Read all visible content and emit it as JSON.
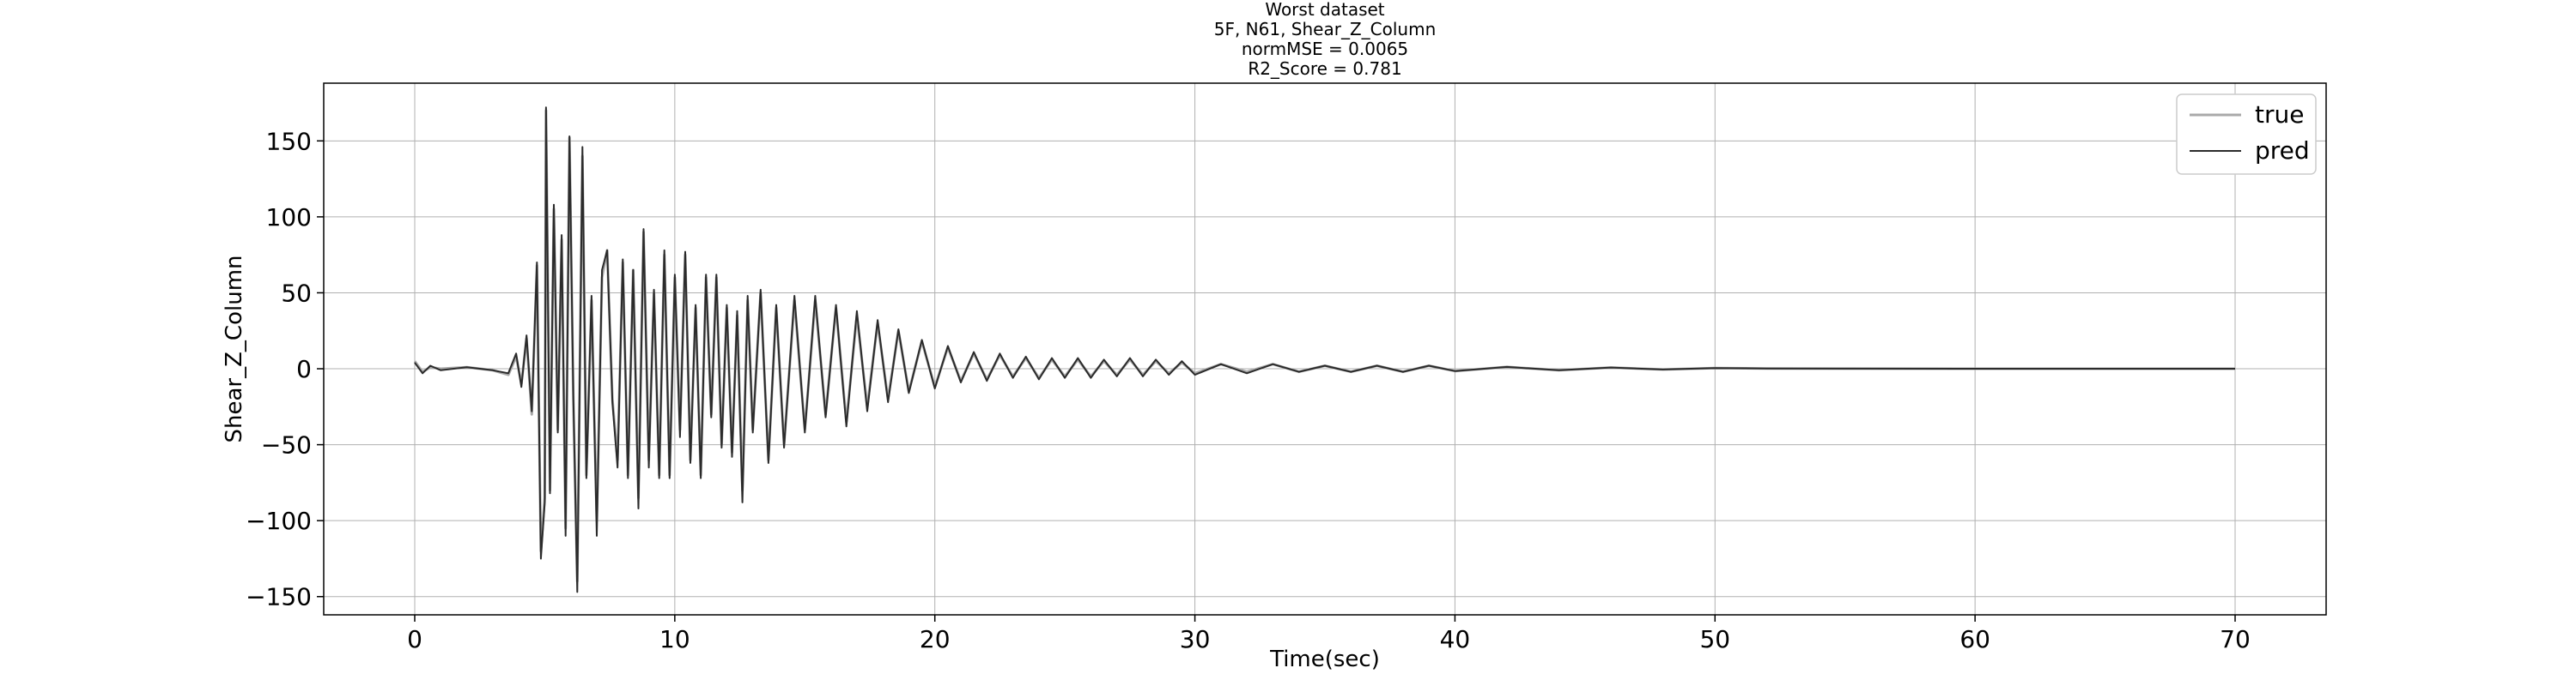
{
  "chart_data": {
    "type": "line",
    "title_lines": [
      "Worst dataset",
      "5F, N61, Shear_Z_Column",
      "normMSE = 0.0065",
      "R2_Score = 0.781"
    ],
    "xlabel": "Time(sec)",
    "ylabel": "Shear_Z_Column",
    "xlim": [
      -3.5,
      73.5
    ],
    "ylim": [
      -162,
      188
    ],
    "xticks": [
      0,
      10,
      20,
      30,
      40,
      50,
      60,
      70
    ],
    "yticks": [
      -150,
      -100,
      -50,
      0,
      50,
      100,
      150
    ],
    "xtick_labels": [
      "0",
      "10",
      "20",
      "30",
      "40",
      "50",
      "60",
      "70"
    ],
    "ytick_labels": [
      "−150",
      "−100",
      "−50",
      "0",
      "50",
      "100",
      "150"
    ],
    "grid": true,
    "legend_position": "top-right",
    "series": [
      {
        "name": "true",
        "color": "#a9a9a9",
        "points": [
          [
            0,
            5
          ],
          [
            0.3,
            -2
          ],
          [
            0.6,
            1
          ],
          [
            1,
            0
          ],
          [
            2,
            1
          ],
          [
            3,
            -1
          ],
          [
            3.6,
            -4
          ],
          [
            3.9,
            8
          ],
          [
            4.1,
            -10
          ],
          [
            4.3,
            20
          ],
          [
            4.5,
            -30
          ],
          [
            4.7,
            68
          ],
          [
            4.85,
            -120
          ],
          [
            5.0,
            -85
          ],
          [
            5.05,
            170
          ],
          [
            5.2,
            -80
          ],
          [
            5.35,
            105
          ],
          [
            5.5,
            -40
          ],
          [
            5.65,
            85
          ],
          [
            5.8,
            -105
          ],
          [
            5.95,
            152
          ],
          [
            6.1,
            -20
          ],
          [
            6.25,
            -140
          ],
          [
            6.45,
            140
          ],
          [
            6.6,
            -70
          ],
          [
            6.8,
            45
          ],
          [
            7.0,
            -100
          ],
          [
            7.2,
            60
          ],
          [
            7.4,
            78
          ],
          [
            7.6,
            -20
          ],
          [
            7.8,
            -60
          ],
          [
            8.0,
            70
          ],
          [
            8.2,
            -70
          ],
          [
            8.4,
            65
          ],
          [
            8.6,
            -85
          ],
          [
            8.8,
            90
          ],
          [
            9.0,
            -60
          ],
          [
            9.2,
            50
          ],
          [
            9.4,
            -70
          ],
          [
            9.6,
            75
          ],
          [
            9.8,
            -70
          ],
          [
            10.0,
            60
          ],
          [
            10.2,
            -40
          ],
          [
            10.4,
            75
          ],
          [
            10.6,
            -60
          ],
          [
            10.8,
            40
          ],
          [
            11.0,
            -70
          ],
          [
            11.2,
            60
          ],
          [
            11.4,
            -30
          ],
          [
            11.6,
            60
          ],
          [
            11.8,
            -50
          ],
          [
            12.0,
            40
          ],
          [
            12.2,
            -55
          ],
          [
            12.4,
            35
          ],
          [
            12.6,
            -80
          ],
          [
            12.8,
            45
          ],
          [
            13.0,
            -40
          ],
          [
            13.3,
            50
          ],
          [
            13.6,
            -60
          ],
          [
            13.9,
            40
          ],
          [
            14.2,
            -50
          ],
          [
            14.6,
            45
          ],
          [
            15.0,
            -40
          ],
          [
            15.4,
            45
          ],
          [
            15.8,
            -30
          ],
          [
            16.2,
            40
          ],
          [
            16.6,
            -35
          ],
          [
            17.0,
            35
          ],
          [
            17.4,
            -25
          ],
          [
            17.8,
            30
          ],
          [
            18.2,
            -20
          ],
          [
            18.6,
            25
          ],
          [
            19.0,
            -15
          ],
          [
            19.5,
            18
          ],
          [
            20.0,
            -12
          ],
          [
            20.5,
            14
          ],
          [
            21.0,
            -8
          ],
          [
            21.5,
            10
          ],
          [
            22.0,
            -7
          ],
          [
            22.5,
            9
          ],
          [
            23.0,
            -5
          ],
          [
            23.5,
            7
          ],
          [
            24.0,
            -6
          ],
          [
            24.5,
            6
          ],
          [
            25.0,
            -5
          ],
          [
            25.5,
            6
          ],
          [
            26,
            -5
          ],
          [
            26.5,
            5
          ],
          [
            27,
            -4
          ],
          [
            27.5,
            6
          ],
          [
            28,
            -4
          ],
          [
            28.5,
            5
          ],
          [
            29,
            -3
          ],
          [
            29.5,
            4
          ],
          [
            30,
            -3
          ],
          [
            31,
            3
          ],
          [
            32,
            -2
          ],
          [
            33,
            3
          ],
          [
            34,
            -2
          ],
          [
            35,
            2
          ],
          [
            36,
            -2
          ],
          [
            37,
            2
          ],
          [
            38,
            -2
          ],
          [
            39,
            2
          ],
          [
            40,
            -1.5
          ],
          [
            42,
            1.2
          ],
          [
            44,
            -1
          ],
          [
            46,
            0.8
          ],
          [
            48,
            -0.5
          ],
          [
            50,
            0.4
          ],
          [
            52,
            0.2
          ],
          [
            55,
            0.1
          ],
          [
            60,
            0
          ],
          [
            65,
            0
          ],
          [
            70,
            0
          ]
        ]
      },
      {
        "name": "pred",
        "color": "#2b2b2b",
        "points": [
          [
            0,
            4
          ],
          [
            0.3,
            -3
          ],
          [
            0.6,
            2
          ],
          [
            1,
            -1
          ],
          [
            2,
            1
          ],
          [
            3,
            -1
          ],
          [
            3.6,
            -3
          ],
          [
            3.9,
            10
          ],
          [
            4.1,
            -12
          ],
          [
            4.3,
            22
          ],
          [
            4.5,
            -28
          ],
          [
            4.7,
            70
          ],
          [
            4.85,
            -125
          ],
          [
            5.0,
            -88
          ],
          [
            5.05,
            172
          ],
          [
            5.2,
            -82
          ],
          [
            5.35,
            108
          ],
          [
            5.5,
            -42
          ],
          [
            5.65,
            88
          ],
          [
            5.8,
            -110
          ],
          [
            5.95,
            153
          ],
          [
            6.1,
            -18
          ],
          [
            6.25,
            -147
          ],
          [
            6.45,
            146
          ],
          [
            6.6,
            -72
          ],
          [
            6.8,
            48
          ],
          [
            7.0,
            -110
          ],
          [
            7.2,
            65
          ],
          [
            7.4,
            78
          ],
          [
            7.6,
            -22
          ],
          [
            7.8,
            -65
          ],
          [
            8.0,
            72
          ],
          [
            8.2,
            -72
          ],
          [
            8.4,
            65
          ],
          [
            8.6,
            -92
          ],
          [
            8.8,
            92
          ],
          [
            9.0,
            -65
          ],
          [
            9.2,
            52
          ],
          [
            9.4,
            -72
          ],
          [
            9.6,
            78
          ],
          [
            9.8,
            -72
          ],
          [
            10.0,
            62
          ],
          [
            10.2,
            -45
          ],
          [
            10.4,
            77
          ],
          [
            10.6,
            -62
          ],
          [
            10.8,
            42
          ],
          [
            11.0,
            -72
          ],
          [
            11.2,
            62
          ],
          [
            11.4,
            -32
          ],
          [
            11.6,
            62
          ],
          [
            11.8,
            -52
          ],
          [
            12.0,
            42
          ],
          [
            12.2,
            -58
          ],
          [
            12.4,
            38
          ],
          [
            12.6,
            -88
          ],
          [
            12.8,
            48
          ],
          [
            13.0,
            -42
          ],
          [
            13.3,
            52
          ],
          [
            13.6,
            -62
          ],
          [
            13.9,
            42
          ],
          [
            14.2,
            -52
          ],
          [
            14.6,
            48
          ],
          [
            15.0,
            -42
          ],
          [
            15.4,
            48
          ],
          [
            15.8,
            -32
          ],
          [
            16.2,
            42
          ],
          [
            16.6,
            -38
          ],
          [
            17.0,
            38
          ],
          [
            17.4,
            -28
          ],
          [
            17.8,
            32
          ],
          [
            18.2,
            -22
          ],
          [
            18.6,
            26
          ],
          [
            19.0,
            -16
          ],
          [
            19.5,
            19
          ],
          [
            20.0,
            -13
          ],
          [
            20.5,
            15
          ],
          [
            21.0,
            -9
          ],
          [
            21.5,
            11
          ],
          [
            22.0,
            -8
          ],
          [
            22.5,
            10
          ],
          [
            23.0,
            -6
          ],
          [
            23.5,
            8
          ],
          [
            24.0,
            -7
          ],
          [
            24.5,
            7
          ],
          [
            25.0,
            -6
          ],
          [
            25.5,
            7
          ],
          [
            26,
            -6
          ],
          [
            26.5,
            6
          ],
          [
            27,
            -5
          ],
          [
            27.5,
            7
          ],
          [
            28,
            -5
          ],
          [
            28.5,
            6
          ],
          [
            29,
            -4
          ],
          [
            29.5,
            5
          ],
          [
            30,
            -4
          ],
          [
            31,
            3
          ],
          [
            32,
            -3
          ],
          [
            33,
            3
          ],
          [
            34,
            -2
          ],
          [
            35,
            2
          ],
          [
            36,
            -2
          ],
          [
            37,
            2
          ],
          [
            38,
            -2
          ],
          [
            39,
            2
          ],
          [
            40,
            -1.5
          ],
          [
            42,
            1.2
          ],
          [
            44,
            -1
          ],
          [
            46,
            0.8
          ],
          [
            48,
            -0.5
          ],
          [
            50,
            0.4
          ],
          [
            52,
            0.2
          ],
          [
            55,
            0.1
          ],
          [
            60,
            0
          ],
          [
            65,
            0
          ],
          [
            70,
            0
          ]
        ]
      }
    ]
  }
}
